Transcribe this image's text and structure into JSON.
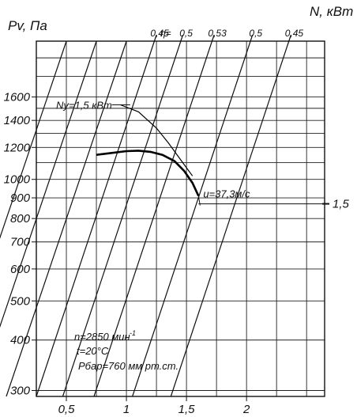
{
  "chart_data": {
    "type": "line",
    "title": "",
    "ylabel": "Pv, Па",
    "y2label": "N, кВт",
    "xlabel": "",
    "yscale": "log",
    "ylim": [
      290,
      2200
    ],
    "xlim": [
      0.25,
      2.65
    ],
    "grid": true,
    "y_ticks": [
      300,
      400,
      500,
      600,
      700,
      800,
      900,
      1000,
      1200,
      1400,
      1600
    ],
    "y_tick_labels": [
      "300",
      "400",
      "500",
      "600",
      "700",
      "800",
      "900",
      "1000",
      "1200",
      "1400",
      "1600"
    ],
    "x_ticks": [
      0.5,
      1,
      1.5,
      2
    ],
    "x_tick_labels": [
      "0,5",
      "1",
      "1,5",
      "2"
    ],
    "x_grid": [
      0.25,
      0.5,
      0.75,
      1,
      1.25,
      1.5,
      1.75,
      2,
      2.25,
      2.5,
      2.65
    ],
    "y_grid_extra": [
      1100,
      1300,
      1500,
      1800,
      2000,
      2200
    ],
    "efficiency_lines": {
      "label_prefix": "η=",
      "labels": [
        "0,45",
        "0,5",
        "0,53",
        "0,5",
        "0,45"
      ],
      "top_x": [
        1.25,
        1.47,
        1.73,
        2.05,
        2.37
      ]
    },
    "series": [
      {
        "kind": "pressure-curve",
        "x": [
          0.75,
          0.85,
          1.0,
          1.1,
          1.2,
          1.3,
          1.4,
          1.48,
          1.55,
          1.6
        ],
        "y": [
          1150,
          1160,
          1175,
          1178,
          1170,
          1150,
          1110,
          1050,
          980,
          910
        ]
      },
      {
        "kind": "power-curve",
        "x": [
          0.95,
          1.1,
          1.25,
          1.35,
          1.45,
          1.55
        ],
        "y": [
          1530,
          1470,
          1340,
          1230,
          1120,
          1020
        ]
      }
    ],
    "power_label": {
      "text": "Ny=1,5 кВт",
      "anchor": {
        "x": 0.9,
        "y": 1530
      }
    },
    "right_marker": {
      "label": "1,5",
      "y": 870
    },
    "speed_label": {
      "text": "u=37,3м/с",
      "anchor": {
        "x": 1.6,
        "y": 910
      }
    },
    "notes": [
      "n=2850 мин",
      "-1",
      "t=20°C",
      "Pбар=760 мм рт.ст."
    ]
  }
}
